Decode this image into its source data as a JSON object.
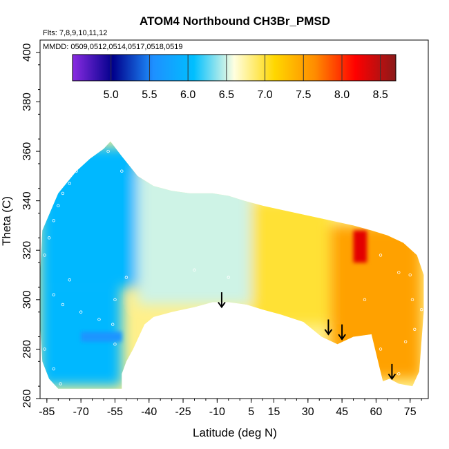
{
  "chart_data": {
    "type": "heatmap",
    "title": "ATOM4 Northbound CH3Br_PMSD",
    "xlabel": "Latitude (deg N)",
    "ylabel": "Theta (C)",
    "xlim": [
      -88,
      83
    ],
    "ylim": [
      260,
      405
    ],
    "x_ticks": [
      -85,
      -70,
      -55,
      -40,
      -25,
      -10,
      5,
      15,
      30,
      45,
      60,
      75
    ],
    "y_ticks": [
      260,
      280,
      300,
      320,
      340,
      360,
      380,
      400
    ],
    "flights_note": "Flts: 7,8,9,10,11,12",
    "dates_note": "MMDD: 0509,0512,0514,0517,0518,0519",
    "colorbar": {
      "range": [
        4.5,
        8.7
      ],
      "ticks": [
        5.0,
        5.5,
        6.0,
        6.5,
        7.0,
        7.5,
        8.0,
        8.5
      ],
      "tick_labels": [
        "5.0",
        "5.5",
        "6.0",
        "6.5",
        "7.0",
        "7.5",
        "8.0",
        "8.5"
      ],
      "colors": [
        "#8a2be2",
        "#00008b",
        "#1e90ff",
        "#00bfff",
        "#ffffe0",
        "#ffd700",
        "#ff8c00",
        "#ff0000",
        "#8b1a1a"
      ]
    },
    "field_regions": [
      {
        "name": "southern-high-blue",
        "lat": [
          -88,
          -45
        ],
        "theta": [
          305,
          362
        ],
        "value": 6.0
      },
      {
        "name": "southern-low-blue",
        "lat": [
          -88,
          -52
        ],
        "theta": [
          265,
          305
        ],
        "value": 6.0
      },
      {
        "name": "southern-deep-blue-streak",
        "lat": [
          -70,
          -52
        ],
        "theta": [
          283,
          287
        ],
        "value": 5.6
      },
      {
        "name": "midlat-light-blue",
        "lat": [
          -45,
          5
        ],
        "theta": [
          298,
          352
        ],
        "value": 6.5
      },
      {
        "name": "tropical-pale-yellow",
        "lat": [
          5,
          40
        ],
        "theta": [
          290,
          340
        ],
        "value": 7.0
      },
      {
        "name": "northern-yellow",
        "lat": [
          40,
          80
        ],
        "theta": [
          268,
          330
        ],
        "value": 7.5
      },
      {
        "name": "northern-red-peak",
        "lat": [
          50,
          56
        ],
        "theta": [
          315,
          328
        ],
        "value": 8.3
      }
    ],
    "arrows": [
      {
        "lat": -8,
        "theta_top": 303,
        "theta_bottom": 297
      },
      {
        "lat": 39,
        "theta_top": 292,
        "theta_bottom": 286
      },
      {
        "lat": 45,
        "theta_top": 290,
        "theta_bottom": 284
      },
      {
        "lat": 67,
        "theta_top": 274,
        "theta_bottom": 268
      }
    ],
    "sample_points": [
      [
        -86,
        318
      ],
      [
        -84,
        325
      ],
      [
        -82,
        332
      ],
      [
        -80,
        338
      ],
      [
        -78,
        343
      ],
      [
        -75,
        347
      ],
      [
        -72,
        352
      ],
      [
        -70,
        356
      ],
      [
        -67,
        358
      ],
      [
        -62,
        362
      ],
      [
        -58,
        360
      ],
      [
        -52,
        352
      ],
      [
        -82,
        302
      ],
      [
        -78,
        298
      ],
      [
        -70,
        295
      ],
      [
        -62,
        292
      ],
      [
        -56,
        290
      ],
      [
        -55,
        282
      ],
      [
        -86,
        280
      ],
      [
        -82,
        272
      ],
      [
        -79,
        266
      ],
      [
        -75,
        308
      ],
      [
        -55,
        300
      ],
      [
        -50,
        309
      ],
      [
        -20,
        312
      ],
      [
        -5,
        309
      ],
      [
        62,
        318
      ],
      [
        70,
        311
      ],
      [
        75,
        310
      ],
      [
        76,
        300
      ],
      [
        80,
        296
      ],
      [
        77,
        288
      ],
      [
        73,
        283
      ],
      [
        70,
        270
      ],
      [
        66,
        266
      ],
      [
        62,
        280
      ],
      [
        55,
        300
      ]
    ]
  }
}
